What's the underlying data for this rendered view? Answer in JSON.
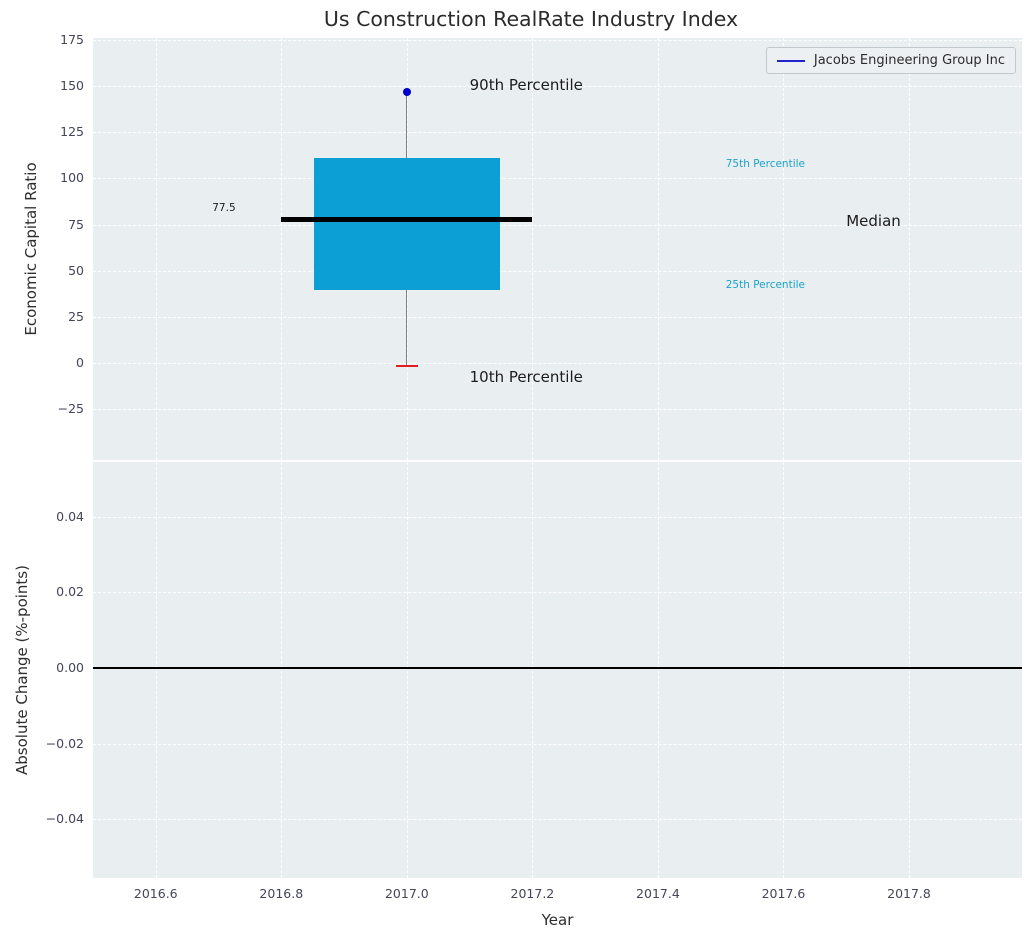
{
  "chart_data": {
    "type": "box",
    "title": "Us Construction RealRate Industry Index",
    "xlabel": "Year",
    "xlim": [
      2016.5,
      2017.98
    ],
    "xticks": {
      "values": [
        2016.6,
        2016.8,
        2017.0,
        2017.2,
        2017.4,
        2017.6,
        2017.8
      ],
      "labels": [
        "2016.6",
        "2016.8",
        "2017.0",
        "2017.2",
        "2017.4",
        "2017.6",
        "2017.8"
      ]
    },
    "legend": {
      "label": "Jacobs Engineering Group Inc",
      "line_color": "#2222cc",
      "position": "upper right"
    },
    "top_panel": {
      "ylabel": "Economic Capital Ratio",
      "ylim": [
        -52.5,
        176
      ],
      "yticks": {
        "values": [
          175,
          150,
          125,
          100,
          75,
          50,
          25,
          0,
          -25
        ],
        "labels": [
          "175",
          "150",
          "125",
          "100",
          "75",
          "50",
          "25",
          "0",
          "−25"
        ]
      },
      "series_x": 2017.0,
      "box": {
        "p10": -1.5,
        "p25": 39.5,
        "median": 77.5,
        "p75": 111,
        "p90": 147,
        "box_half_width": 0.148,
        "median_half_width": 0.2
      },
      "annotations": {
        "p90_label": "90th Percentile",
        "p10_label": "10th Percentile",
        "p75_label": "75th Percentile",
        "p25_label": "25th Percentile",
        "median_label": "Median",
        "median_value_label": "77.5"
      },
      "colors": {
        "box_fill": "#0c9fd6",
        "median_line": "#000000",
        "whisker": "#808080",
        "p90_marker": "#0000cd",
        "p10_cap": "#e02020",
        "percentile_text": "#1ca3c9"
      }
    },
    "bottom_panel": {
      "ylabel": "Absolute Change (%-points)",
      "ylim": [
        -0.0555,
        0.0545
      ],
      "yticks": {
        "values": [
          0.04,
          0.02,
          0.0,
          -0.02,
          -0.04
        ],
        "labels": [
          "0.04",
          "0.02",
          "0.00",
          "−0.02",
          "−0.04"
        ]
      },
      "zero_line": {
        "y": 0.0,
        "color": "#000000"
      }
    },
    "style": {
      "plot_background": "#e9eef0",
      "grid_color": "#ffffff",
      "figure_background": "#ffffff",
      "tick_color": "#45455a"
    }
  }
}
